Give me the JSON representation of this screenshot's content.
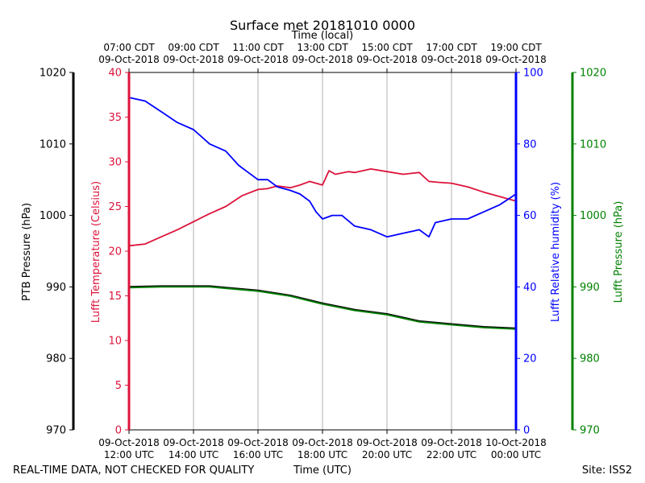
{
  "chart_data": {
    "type": "line",
    "title": "Surface met 20181010 0000",
    "top_axis_label": "Time (local)",
    "bottom_axis_label": "Time (UTC)",
    "footer_left": "REAL-TIME DATA, NOT CHECKED FOR QUALITY",
    "footer_right": "Site: ISS2",
    "x_range_hours": [
      0,
      12
    ],
    "bottom_ticks": [
      {
        "hour": 0,
        "line1": "09-Oct-2018",
        "line2": "12:00 UTC"
      },
      {
        "hour": 2,
        "line1": "09-Oct-2018",
        "line2": "14:00 UTC"
      },
      {
        "hour": 4,
        "line1": "09-Oct-2018",
        "line2": "16:00 UTC"
      },
      {
        "hour": 6,
        "line1": "09-Oct-2018",
        "line2": "18:00 UTC"
      },
      {
        "hour": 8,
        "line1": "09-Oct-2018",
        "line2": "20:00 UTC"
      },
      {
        "hour": 10,
        "line1": "09-Oct-2018",
        "line2": "22:00 UTC"
      },
      {
        "hour": 12,
        "line1": "10-Oct-2018",
        "line2": "00:00 UTC"
      }
    ],
    "top_ticks": [
      {
        "hour": 0,
        "line1": "07:00 CDT",
        "line2": "09-Oct-2018"
      },
      {
        "hour": 2,
        "line1": "09:00 CDT",
        "line2": "09-Oct-2018"
      },
      {
        "hour": 4,
        "line1": "11:00 CDT",
        "line2": "09-Oct-2018"
      },
      {
        "hour": 6,
        "line1": "13:00 CDT",
        "line2": "09-Oct-2018"
      },
      {
        "hour": 8,
        "line1": "15:00 CDT",
        "line2": "09-Oct-2018"
      },
      {
        "hour": 10,
        "line1": "17:00 CDT",
        "line2": "09-Oct-2018"
      },
      {
        "hour": 12,
        "line1": "19:00 CDT",
        "line2": "09-Oct-2018"
      }
    ],
    "axes": {
      "ptb_pressure": {
        "label": "PTB Pressure (hPa)",
        "ylim": [
          970,
          1020
        ],
        "ticks": [
          970,
          980,
          990,
          1000,
          1010,
          1020
        ],
        "color": "#000000"
      },
      "temperature": {
        "label": "Lufft Temperature (Celsius)",
        "ylim": [
          0,
          40
        ],
        "ticks": [
          0,
          5,
          10,
          15,
          20,
          25,
          30,
          35,
          40
        ],
        "color": "#dc143c"
      },
      "humidity": {
        "label": "Lufft Relative humidity (%)",
        "ylim": [
          0,
          100
        ],
        "ticks": [
          0,
          20,
          40,
          60,
          80,
          100
        ],
        "color": "#0000ff"
      },
      "lufft_pressure": {
        "label": "Lufft Pressure (hPa)",
        "ylim": [
          970,
          1020
        ],
        "ticks": [
          970,
          980,
          990,
          1000,
          1010,
          1020
        ],
        "color": "#008000"
      }
    },
    "series": [
      {
        "name": "Lufft Temperature",
        "axis": "temperature",
        "color": "#dc143c",
        "x": [
          0,
          0.5,
          1,
          1.5,
          2,
          2.5,
          3,
          3.5,
          4,
          4.3,
          4.6,
          5,
          5.3,
          5.6,
          6,
          6.2,
          6.4,
          6.8,
          7,
          7.5,
          8,
          8.5,
          9,
          9.3,
          9.6,
          10,
          10.5,
          11,
          11.5,
          12
        ],
        "values": [
          20.6,
          20.8,
          21.6,
          22.4,
          23.3,
          24.2,
          25.0,
          26.2,
          26.9,
          27.0,
          27.3,
          27.1,
          27.4,
          27.8,
          27.4,
          29.0,
          28.6,
          28.9,
          28.8,
          29.2,
          28.9,
          28.6,
          28.8,
          27.8,
          27.7,
          27.6,
          27.2,
          26.6,
          26.1,
          25.6
        ]
      },
      {
        "name": "Lufft Relative humidity",
        "axis": "humidity",
        "color": "#0000ff",
        "x": [
          0,
          0.5,
          1,
          1.5,
          2,
          2.5,
          3,
          3.4,
          3.7,
          4,
          4.3,
          4.6,
          5,
          5.3,
          5.6,
          5.8,
          6,
          6.3,
          6.6,
          7,
          7.5,
          8,
          8.5,
          9,
          9.3,
          9.5,
          10,
          10.5,
          11,
          11.5,
          12
        ],
        "values": [
          93,
          92,
          89,
          86,
          84,
          80,
          78,
          74,
          72,
          70,
          70,
          68,
          67,
          66,
          64,
          61,
          59,
          60,
          60,
          57,
          56,
          54,
          55,
          56,
          54,
          58,
          59,
          59,
          61,
          63,
          66
        ]
      },
      {
        "name": "PTB Pressure",
        "axis": "ptb_pressure",
        "color": "#000000",
        "x": [
          0,
          1,
          2,
          2.5,
          3,
          4,
          5,
          6,
          7,
          8,
          9,
          10,
          11,
          12
        ],
        "values": [
          990.0,
          990.1,
          990.1,
          990.1,
          989.9,
          989.5,
          988.8,
          987.7,
          986.8,
          986.2,
          985.2,
          984.8,
          984.4,
          984.2
        ]
      },
      {
        "name": "Lufft Pressure",
        "axis": "lufft_pressure",
        "color": "#008000",
        "x": [
          0,
          1,
          2,
          2.5,
          3,
          4,
          5,
          6,
          7,
          8,
          9,
          10,
          11,
          12
        ],
        "values": [
          989.9,
          990.0,
          990.0,
          990.0,
          989.8,
          989.4,
          988.7,
          987.6,
          986.7,
          986.1,
          985.1,
          984.7,
          984.3,
          984.1
        ]
      }
    ]
  }
}
